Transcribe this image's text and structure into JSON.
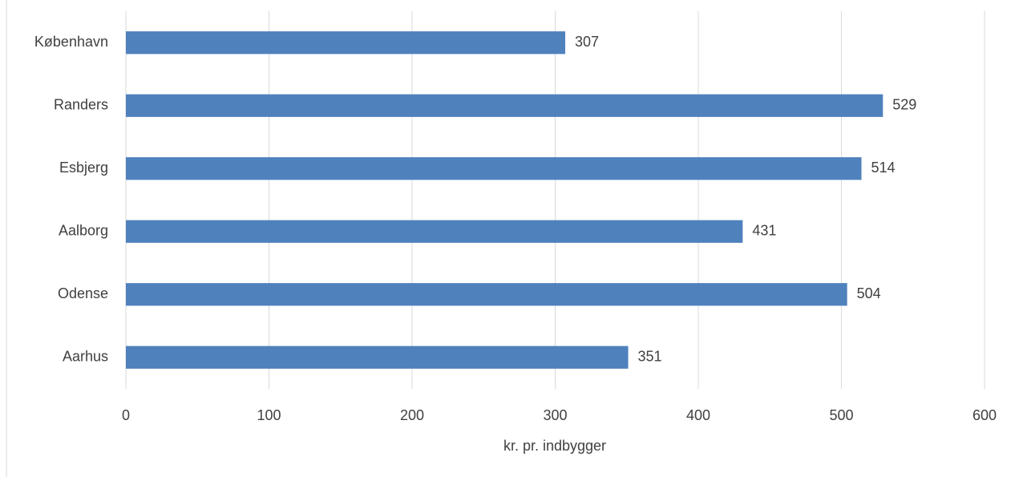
{
  "chart_data": {
    "type": "bar",
    "orientation": "horizontal",
    "categories": [
      "København",
      "Randers",
      "Esbjerg",
      "Aalborg",
      "Odense",
      "Aarhus"
    ],
    "values": [
      307,
      529,
      514,
      431,
      504,
      351
    ],
    "color": "#4f81bd",
    "x_label": "kr. pr. indbygger",
    "xlim": [
      0,
      600
    ],
    "xticks": [
      0,
      100,
      200,
      300,
      400,
      500,
      600
    ],
    "grid": true
  }
}
